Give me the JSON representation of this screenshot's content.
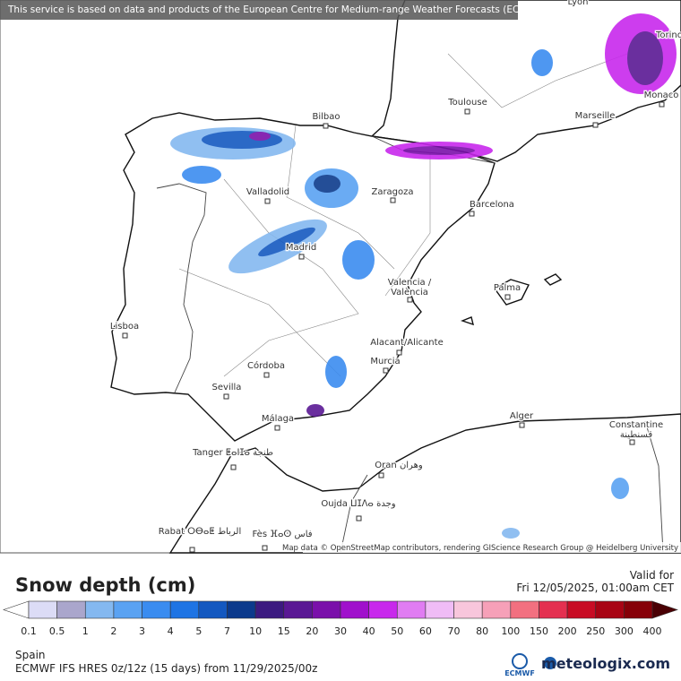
{
  "header": {
    "notice": "This service is based on data and products of the European Centre for Medium-range Weather Forecasts (ECMWF)"
  },
  "map": {
    "cities": [
      "Lyon",
      "Torino",
      "Bilbao",
      "Toulouse",
      "Marseille",
      "Monaco",
      "Valladolid",
      "Zaragoza",
      "Barcelona",
      "Madrid",
      "Valencia /",
      "València",
      "Palma",
      "Lisboa",
      "Alacant/Alicante",
      "Murcia",
      "Córdoba",
      "Sevilla",
      "Málaga",
      "Alger",
      "Constantine",
      "قسنطينة",
      "Tanger ⵟⴰⵏⵊⴰ طنجة",
      "Oran وهران",
      "Oujda ⵡⵊⴷⴰ وجدة",
      "Rabat ⵔⴱⴰⵟ الرباط",
      "Fès ⴼⴰⵙ فاس"
    ],
    "attribution": "Map data © OpenStreetMap contributors, rendering GIScience Research Group @ Heidelberg University"
  },
  "legend": {
    "title": "Snow depth (cm)",
    "valid_label": "Valid for",
    "valid_time": "Fri 12/05/2025, 01:00am CET",
    "levels": [
      0.1,
      0.5,
      1,
      2,
      3,
      4,
      5,
      7,
      10,
      15,
      20,
      30,
      40,
      50,
      60,
      70,
      80,
      100,
      150,
      200,
      250,
      300,
      400
    ],
    "colors": [
      "#dcdcf6",
      "#aaa6cc",
      "#84b8f0",
      "#5aa2f2",
      "#3a8cf0",
      "#1e74e4",
      "#1458c0",
      "#0c3a8c",
      "#3c1a80",
      "#5a1894",
      "#7a10aa",
      "#a010cc",
      "#c828ec",
      "#e07cf2",
      "#f0bcf6",
      "#f8c6dc",
      "#f6a0b8",
      "#f27080",
      "#e43050",
      "#c80c24",
      "#a80414",
      "#860008"
    ],
    "under_color": "#ffffff",
    "over_color": "#4a0004"
  },
  "footer": {
    "region": "Spain",
    "model": "ECMWF IFS HRES 0z/12z (15 days) from  11/29/2025/00z",
    "logo_left": "ECMWF",
    "logo_right": "meteologix.com"
  }
}
